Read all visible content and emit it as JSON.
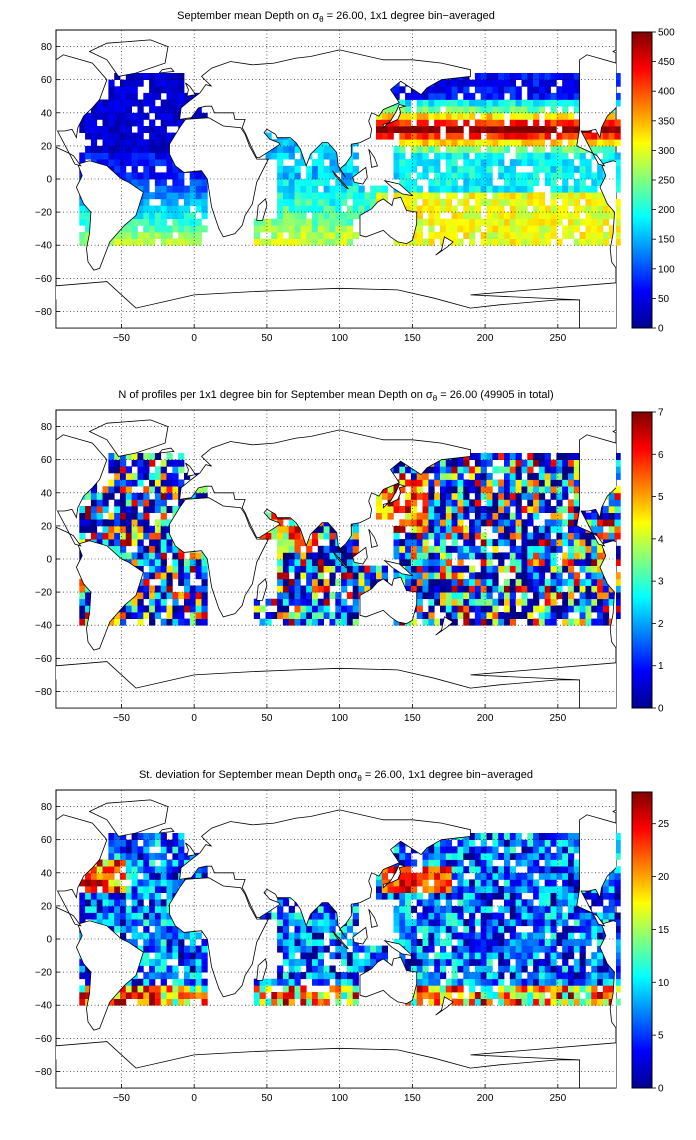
{
  "figure": {
    "panels": [
      {
        "id": "mean-depth",
        "title_prefix": "September mean Depth on ",
        "sigma_symbol": "σ",
        "sigma_sub": "θ",
        "title_suffix": " = 26.00, 1x1 degree bin−averaged",
        "colorbar_ticks": [
          "0",
          "50",
          "100",
          "150",
          "200",
          "250",
          "300",
          "350",
          "400",
          "450",
          "500"
        ],
        "colormap": "jet"
      },
      {
        "id": "profile-count",
        "title_prefix": "N of profiles per 1x1 degree bin for September mean Depth on ",
        "sigma_symbol": "σ",
        "sigma_sub": "θ",
        "title_suffix": " = 26.00 (49905 in total)",
        "colorbar_ticks": [
          "0",
          "1",
          "2",
          "3",
          "4",
          "5",
          "6",
          "7"
        ],
        "colormap": "jet"
      },
      {
        "id": "std-deviation",
        "title_prefix": "St. deviation for September mean Depth on",
        "sigma_symbol": "σ",
        "sigma_sub": "θ",
        "title_suffix": " = 26.00, 1x1 degree bin−averaged",
        "colorbar_ticks": [
          "0",
          "5",
          "10",
          "15",
          "20",
          "25"
        ],
        "colormap": "jet"
      }
    ],
    "x_ticks": [
      "−50",
      "0",
      "50",
      "100",
      "150",
      "200",
      "250"
    ],
    "y_ticks": [
      "80",
      "60",
      "40",
      "20",
      "0",
      "−20",
      "−40",
      "−60",
      "−80"
    ],
    "colors": {
      "land_outline": "#000000",
      "ocean_empty": "#ffffff",
      "grid": "#000000"
    }
  }
}
